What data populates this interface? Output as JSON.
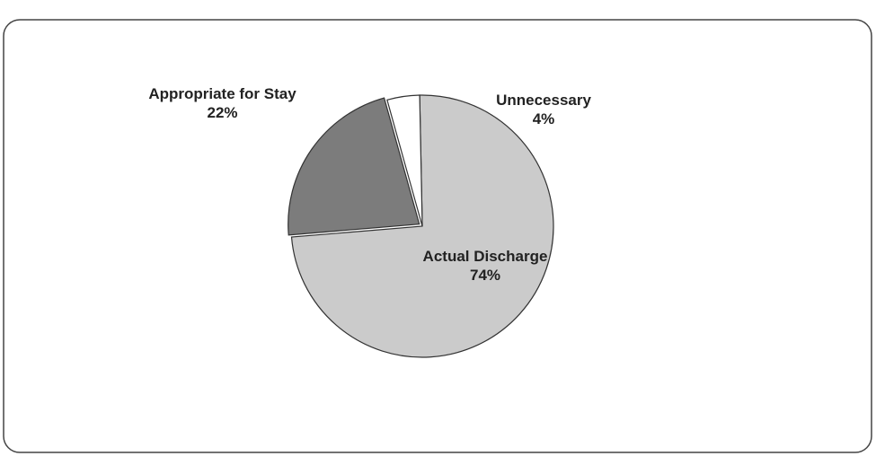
{
  "chart_data": {
    "type": "pie",
    "categories": [
      "Actual Discharge",
      "Appropriate for Stay",
      "Unnecessary"
    ],
    "values": [
      74,
      22,
      4
    ],
    "value_labels": [
      "74%",
      "22%",
      "4%"
    ],
    "colors": [
      "#cbcbcb",
      "#7c7c7c",
      "#ffffff"
    ]
  }
}
